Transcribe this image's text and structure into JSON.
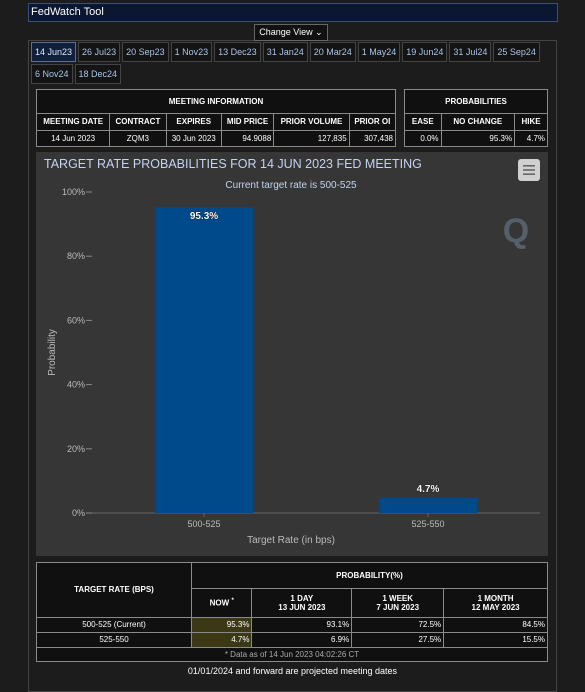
{
  "header": {
    "title": "FedWatch Tool",
    "change_view": "Change View"
  },
  "tabs": [
    "14 Jun23",
    "26 Jul23",
    "20 Sep23",
    "1 Nov23",
    "13 Dec23",
    "31 Jan24",
    "20 Mar24",
    "1 May24",
    "19 Jun24",
    "31 Jul24",
    "25 Sep24",
    "6 Nov24",
    "18 Dec24"
  ],
  "meeting_info": {
    "title": "MEETING INFORMATION",
    "columns": [
      "MEETING DATE",
      "CONTRACT",
      "EXPIRES",
      "MID PRICE",
      "PRIOR VOLUME",
      "PRIOR OI"
    ],
    "row": [
      "14 Jun 2023",
      "ZQM3",
      "30 Jun 2023",
      "94.9088",
      "127,835",
      "307,438"
    ]
  },
  "probabilities": {
    "title": "PROBABILITIES",
    "columns": [
      "EASE",
      "NO CHANGE",
      "HIKE"
    ],
    "row": [
      "0.0%",
      "95.3%",
      "4.7%"
    ]
  },
  "chart_data": {
    "type": "bar",
    "title": "TARGET RATE PROBABILITIES FOR 14 JUN 2023 FED MEETING",
    "subtitle": "Current target rate is 500-525",
    "y_label": "Probability",
    "x_label": "Target Rate (in bps)",
    "categories": [
      "500-525",
      "525-550"
    ],
    "values": [
      95.3,
      4.7
    ],
    "value_labels": [
      "95.3%",
      "4.7%"
    ],
    "color": "#004a8c",
    "ylim": [
      0,
      100
    ],
    "yticks": [
      {
        "value": 0,
        "label": "0%"
      },
      {
        "value": 20,
        "label": "20%"
      },
      {
        "value": 40,
        "label": "40%"
      },
      {
        "value": 60,
        "label": "60%"
      },
      {
        "value": 80,
        "label": "80%"
      },
      {
        "value": 100,
        "label": "100%"
      }
    ],
    "grid": false
  },
  "probability_table": {
    "rate_header": "TARGET RATE (BPS)",
    "prob_header": "PROBABILITY(%)",
    "columns": [
      {
        "label": "NOW",
        "note": "*"
      },
      {
        "label": "1 DAY",
        "date": "13 JUN 2023"
      },
      {
        "label": "1 WEEK",
        "date": "7 JUN 2023"
      },
      {
        "label": "1 MONTH",
        "date": "12 MAY 2023"
      }
    ],
    "rows": [
      [
        "500-525 (Current)",
        "95.3%",
        "93.1%",
        "72.5%",
        "84.5%"
      ],
      [
        "525-550",
        "4.7%",
        "6.9%",
        "27.5%",
        "15.5%"
      ]
    ],
    "footnote": "* Data as of 14 Jun 2023 04:02:26 CT"
  },
  "footer": "01/01/2024 and forward are projected meeting dates"
}
